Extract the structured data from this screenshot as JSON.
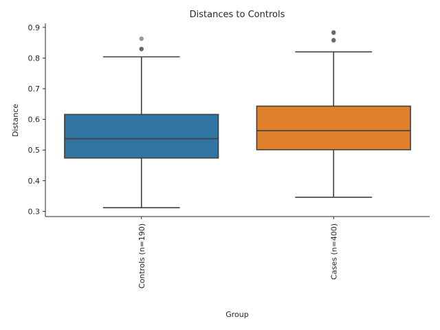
{
  "chart_data": {
    "type": "box",
    "title": "Distances to Controls",
    "xlabel": "Group",
    "ylabel": "Distance",
    "ylim": [
      0.283,
      0.913
    ],
    "yticks": [
      0.3,
      0.4,
      0.5,
      0.6,
      0.7,
      0.8,
      0.9
    ],
    "grid": false,
    "categories": [
      "Controls (n=190)",
      "Cases (n=400)"
    ],
    "boxes": [
      {
        "category": "Controls (n=190)",
        "color": "#3274a1",
        "whisker_low": 0.312,
        "q1": 0.474,
        "median": 0.537,
        "q3": 0.616,
        "whisker_high": 0.804,
        "outliers": [
          0.829,
          0.83,
          0.863
        ]
      },
      {
        "category": "Cases (n=400)",
        "color": "#e1812c",
        "whisker_low": 0.346,
        "q1": 0.501,
        "median": 0.563,
        "q3": 0.643,
        "whisker_high": 0.82,
        "outliers": [
          0.857,
          0.859,
          0.882,
          0.884
        ]
      }
    ]
  }
}
